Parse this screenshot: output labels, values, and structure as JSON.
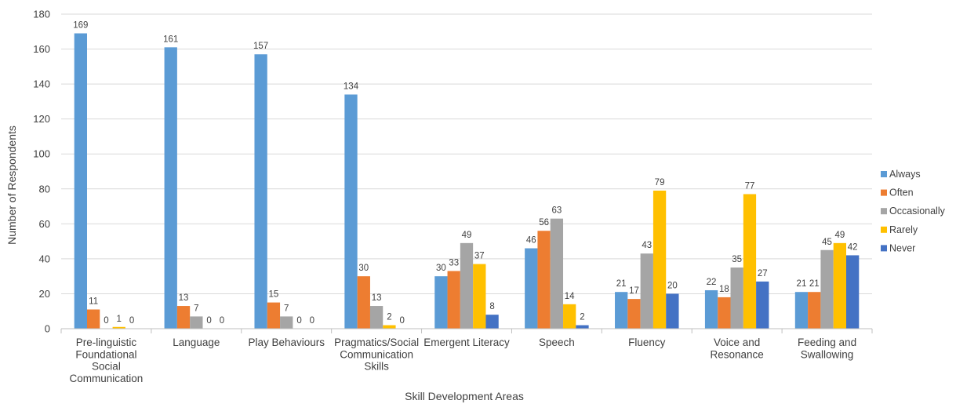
{
  "chart_data": {
    "type": "bar",
    "title": "",
    "xlabel": "Skill Development Areas",
    "ylabel": "Number of Respondents",
    "ylim": [
      0,
      180
    ],
    "yticks": [
      0,
      20,
      40,
      60,
      80,
      100,
      120,
      140,
      160,
      180
    ],
    "grid": true,
    "legend_position": "right",
    "categories": [
      [
        "Pre-linguistic",
        "Foundational",
        "Social",
        "Communication"
      ],
      [
        "Language"
      ],
      [
        "Play Behaviours"
      ],
      [
        "Pragmatics/Social",
        "Communication",
        "Skills"
      ],
      [
        "Emergent Literacy"
      ],
      [
        "Speech"
      ],
      [
        "Fluency"
      ],
      [
        "Voice and",
        "Resonance"
      ],
      [
        "Feeding and",
        "Swallowing"
      ]
    ],
    "series": [
      {
        "name": "Always",
        "color": "#5B9BD5",
        "values": [
          169,
          161,
          157,
          134,
          30,
          46,
          21,
          22,
          21
        ]
      },
      {
        "name": "Often",
        "color": "#ED7D31",
        "values": [
          11,
          13,
          15,
          30,
          33,
          56,
          17,
          18,
          21
        ]
      },
      {
        "name": "Occasionally",
        "color": "#A5A5A5",
        "values": [
          0,
          7,
          7,
          13,
          49,
          63,
          43,
          35,
          45
        ]
      },
      {
        "name": "Rarely",
        "color": "#FFC000",
        "values": [
          1,
          0,
          0,
          2,
          37,
          14,
          79,
          77,
          49
        ]
      },
      {
        "name": "Never",
        "color": "#4472C4",
        "values": [
          0,
          0,
          0,
          0,
          8,
          2,
          20,
          27,
          42
        ]
      }
    ]
  }
}
